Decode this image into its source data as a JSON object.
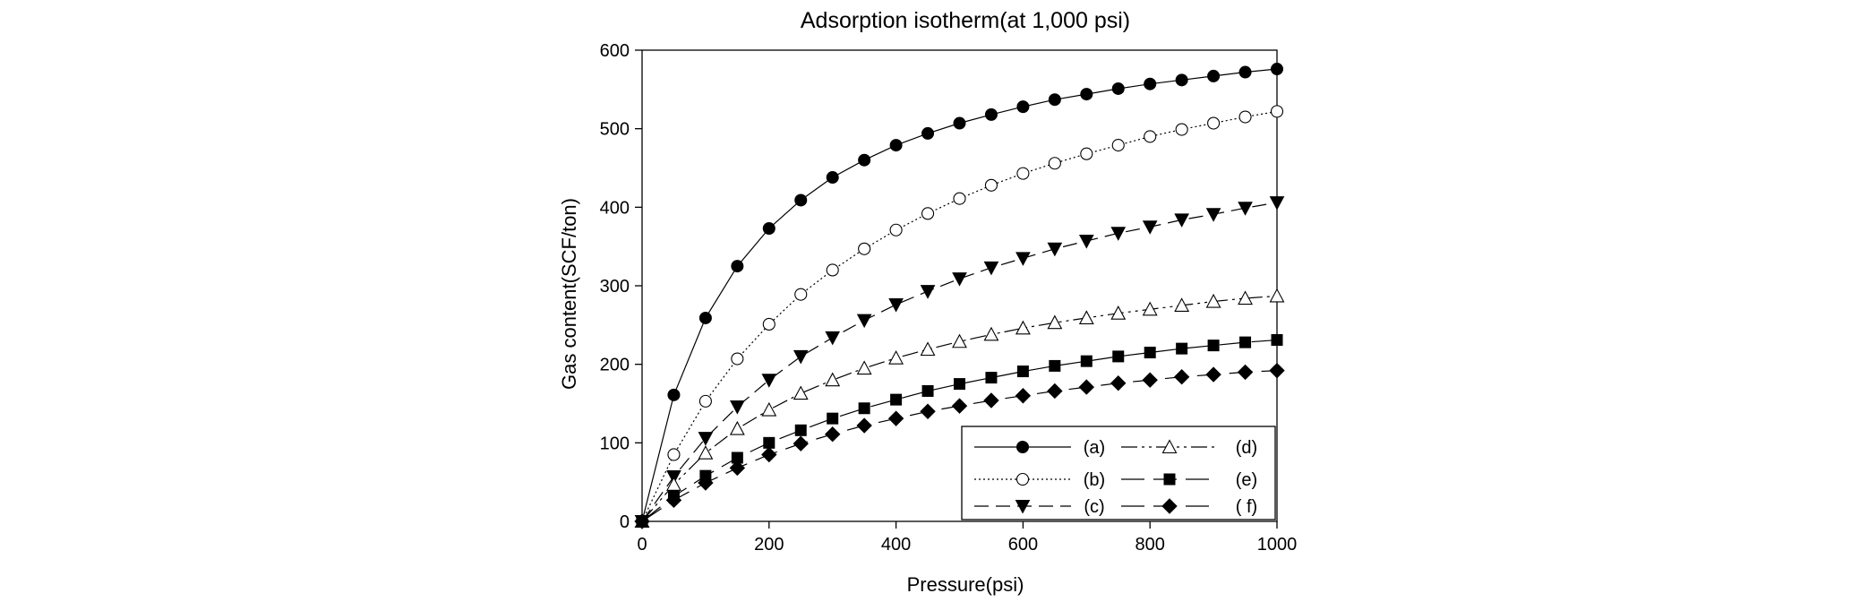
{
  "chart_data": {
    "type": "line",
    "title": "Adsorption isotherm(at 1,000 psi)",
    "xlabel": "Pressure(psi)",
    "ylabel": "Gas content(SCF/ton)",
    "xlim": [
      0,
      1000
    ],
    "ylim": [
      0,
      600
    ],
    "xticks": [
      0,
      200,
      400,
      600,
      800,
      1000
    ],
    "yticks": [
      0,
      100,
      200,
      300,
      400,
      500,
      600
    ],
    "grid": false,
    "legend_position": "bottom-right",
    "x": [
      0,
      50,
      100,
      150,
      200,
      250,
      300,
      350,
      400,
      450,
      500,
      550,
      600,
      650,
      700,
      750,
      800,
      850,
      900,
      950,
      1000
    ],
    "series": [
      {
        "name": "(a)",
        "marker": "filled-circle",
        "dash": "solid",
        "values": [
          0,
          161,
          259,
          325,
          373,
          409,
          438,
          460,
          479,
          494,
          507,
          518,
          528,
          537,
          544,
          551,
          557,
          562,
          567,
          572,
          576
        ]
      },
      {
        "name": "(b)",
        "marker": "open-circle",
        "dash": "dotted",
        "values": [
          0,
          85,
          153,
          207,
          251,
          289,
          320,
          347,
          371,
          392,
          411,
          428,
          443,
          456,
          468,
          479,
          490,
          499,
          507,
          515,
          522
        ]
      },
      {
        "name": "(c)",
        "marker": "filled-triangle-down",
        "dash": "dashed",
        "values": [
          0,
          57,
          106,
          146,
          180,
          210,
          234,
          256,
          276,
          293,
          309,
          323,
          335,
          347,
          357,
          367,
          375,
          384,
          391,
          399,
          406
        ]
      },
      {
        "name": "(d)",
        "marker": "open-triangle-up",
        "dash": "dash-dot-dot",
        "values": [
          0,
          47,
          87,
          118,
          142,
          163,
          180,
          195,
          208,
          219,
          229,
          238,
          246,
          253,
          259,
          265,
          270,
          275,
          280,
          284,
          287
        ]
      },
      {
        "name": "(e)",
        "marker": "filled-square",
        "dash": "long-dash",
        "values": [
          0,
          32,
          58,
          81,
          100,
          116,
          131,
          144,
          155,
          166,
          175,
          183,
          191,
          198,
          204,
          210,
          215,
          220,
          224,
          228,
          231
        ]
      },
      {
        "name": "( f)",
        "marker": "filled-diamond",
        "dash": "long-dash",
        "values": [
          0,
          27,
          49,
          68,
          85,
          99,
          111,
          122,
          131,
          140,
          147,
          154,
          160,
          166,
          171,
          176,
          180,
          184,
          187,
          190,
          192
        ]
      }
    ]
  }
}
